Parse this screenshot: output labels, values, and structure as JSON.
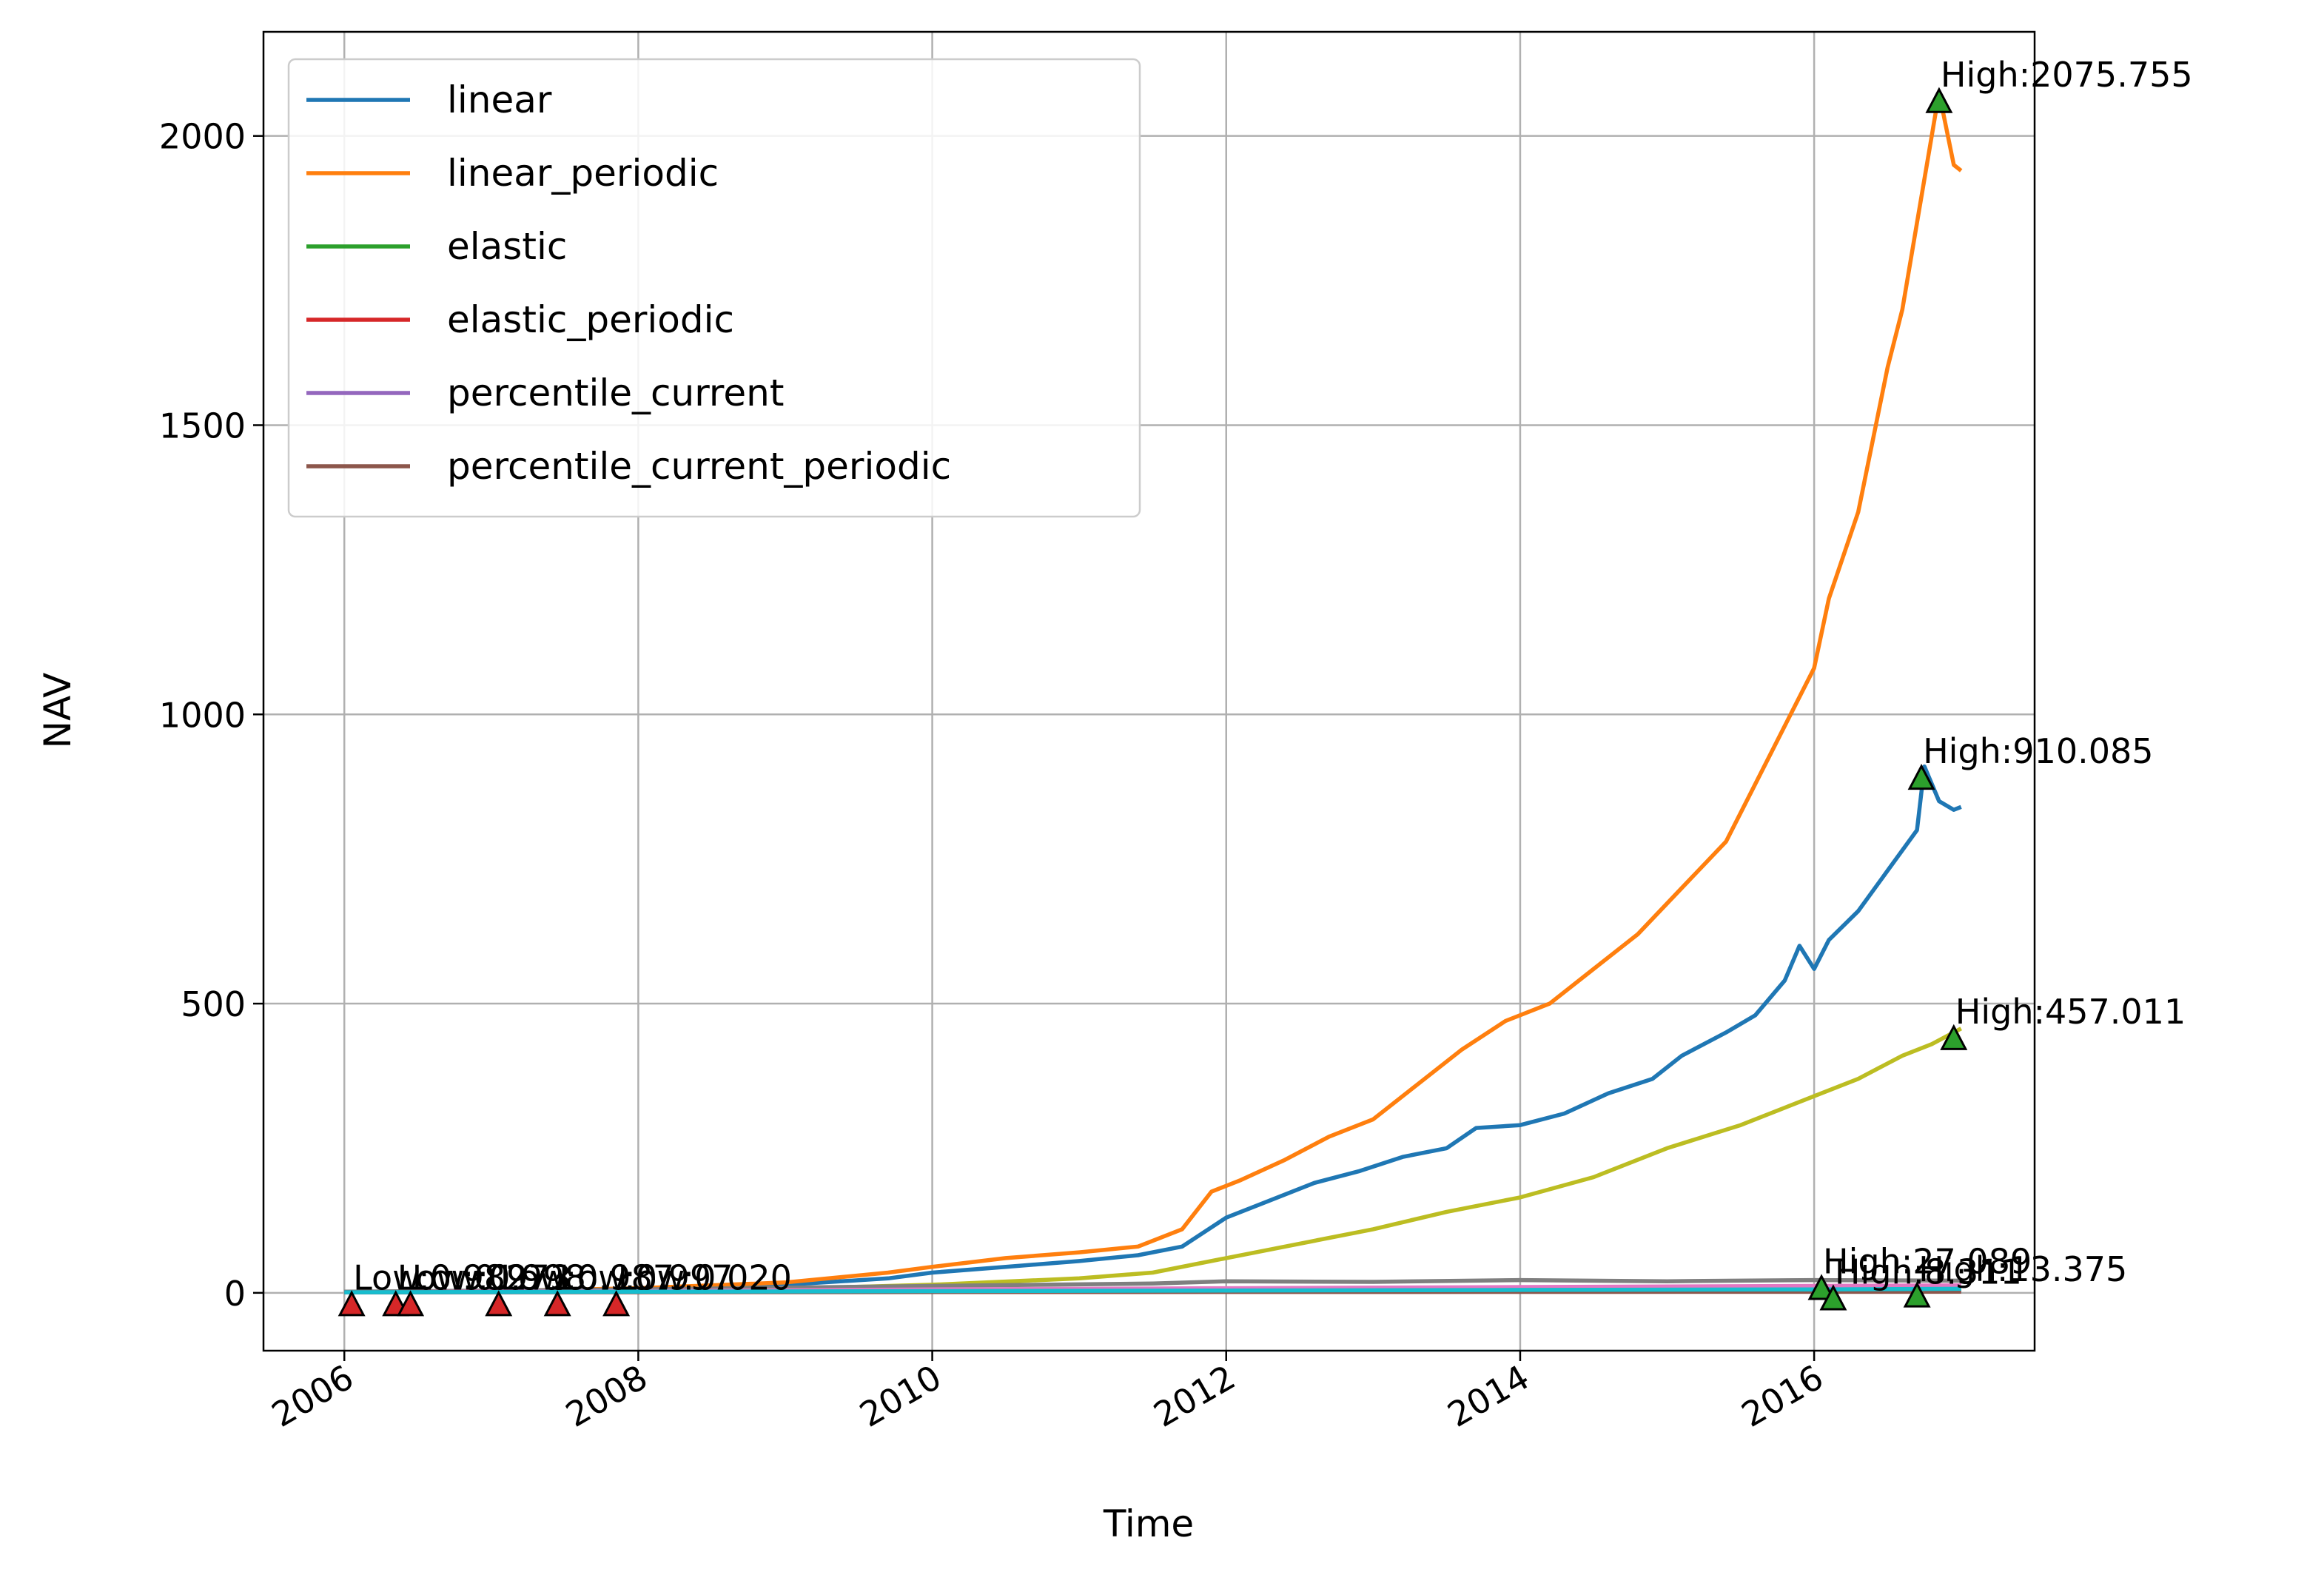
{
  "chart_data": {
    "type": "line",
    "xlabel": "Time",
    "ylabel": "NAV",
    "xlim": [
      2005.45,
      2017.5
    ],
    "ylim": [
      -100,
      2180
    ],
    "grid": true,
    "legend_position": "top-left",
    "x_ticks": [
      2006,
      2008,
      2010,
      2012,
      2014,
      2016
    ],
    "y_ticks": [
      0,
      500,
      1000,
      1500,
      2000
    ],
    "series": [
      {
        "name": "linear",
        "color": "#1f77b4",
        "points": [
          [
            2006.0,
            1
          ],
          [
            2007.0,
            3
          ],
          [
            2008.0,
            7
          ],
          [
            2009.0,
            14
          ],
          [
            2009.7,
            25
          ],
          [
            2010.0,
            35
          ],
          [
            2010.5,
            45
          ],
          [
            2011.0,
            55
          ],
          [
            2011.4,
            65
          ],
          [
            2011.7,
            80
          ],
          [
            2012.0,
            130
          ],
          [
            2012.3,
            160
          ],
          [
            2012.6,
            190
          ],
          [
            2012.9,
            210
          ],
          [
            2013.2,
            235
          ],
          [
            2013.5,
            250
          ],
          [
            2013.7,
            285
          ],
          [
            2014.0,
            290
          ],
          [
            2014.3,
            310
          ],
          [
            2014.6,
            345
          ],
          [
            2014.9,
            370
          ],
          [
            2015.1,
            410
          ],
          [
            2015.4,
            450
          ],
          [
            2015.6,
            480
          ],
          [
            2015.8,
            540
          ],
          [
            2015.9,
            600
          ],
          [
            2016.0,
            560
          ],
          [
            2016.1,
            610
          ],
          [
            2016.3,
            660
          ],
          [
            2016.5,
            730
          ],
          [
            2016.7,
            800
          ],
          [
            2016.75,
            910
          ],
          [
            2016.85,
            850
          ],
          [
            2016.95,
            835
          ],
          [
            2017.0,
            840
          ]
        ]
      },
      {
        "name": "linear_periodic",
        "color": "#ff7f0e",
        "points": [
          [
            2006.0,
            1
          ],
          [
            2007.0,
            3
          ],
          [
            2008.0,
            8
          ],
          [
            2009.0,
            18
          ],
          [
            2009.7,
            35
          ],
          [
            2010.0,
            45
          ],
          [
            2010.5,
            60
          ],
          [
            2011.0,
            70
          ],
          [
            2011.4,
            80
          ],
          [
            2011.7,
            110
          ],
          [
            2011.9,
            175
          ],
          [
            2012.1,
            195
          ],
          [
            2012.4,
            230
          ],
          [
            2012.7,
            270
          ],
          [
            2013.0,
            300
          ],
          [
            2013.3,
            360
          ],
          [
            2013.6,
            420
          ],
          [
            2013.9,
            470
          ],
          [
            2014.2,
            500
          ],
          [
            2014.5,
            560
          ],
          [
            2014.8,
            620
          ],
          [
            2015.1,
            700
          ],
          [
            2015.4,
            780
          ],
          [
            2015.6,
            880
          ],
          [
            2015.8,
            980
          ],
          [
            2016.0,
            1080
          ],
          [
            2016.1,
            1200
          ],
          [
            2016.3,
            1350
          ],
          [
            2016.5,
            1600
          ],
          [
            2016.6,
            1700
          ],
          [
            2016.7,
            1850
          ],
          [
            2016.8,
            2000
          ],
          [
            2016.85,
            2075
          ],
          [
            2016.95,
            1950
          ],
          [
            2017.0,
            1940
          ]
        ]
      },
      {
        "name": "",
        "color": "#bcbd22",
        "points": [
          [
            2006.0,
            1
          ],
          [
            2007.0,
            2
          ],
          [
            2008.0,
            4
          ],
          [
            2009.0,
            7
          ],
          [
            2010.0,
            14
          ],
          [
            2011.0,
            25
          ],
          [
            2011.5,
            35
          ],
          [
            2012.0,
            60
          ],
          [
            2012.5,
            85
          ],
          [
            2013.0,
            110
          ],
          [
            2013.5,
            140
          ],
          [
            2014.0,
            165
          ],
          [
            2014.5,
            200
          ],
          [
            2015.0,
            250
          ],
          [
            2015.5,
            290
          ],
          [
            2016.0,
            340
          ],
          [
            2016.3,
            370
          ],
          [
            2016.6,
            410
          ],
          [
            2016.8,
            430
          ],
          [
            2017.0,
            457
          ]
        ]
      },
      {
        "name": "",
        "color": "#7f7f7f",
        "points": [
          [
            2006.0,
            2
          ],
          [
            2008.0,
            6
          ],
          [
            2010.0,
            12
          ],
          [
            2011.5,
            16
          ],
          [
            2012.0,
            20
          ],
          [
            2013.0,
            19
          ],
          [
            2014.0,
            22
          ],
          [
            2015.0,
            20
          ],
          [
            2016.0,
            22
          ],
          [
            2017.0,
            21
          ]
        ]
      },
      {
        "name": "",
        "color": "#e377c2",
        "points": [
          [
            2006.0,
            1
          ],
          [
            2008.0,
            3
          ],
          [
            2010.0,
            6
          ],
          [
            2012.0,
            8
          ],
          [
            2014.0,
            10
          ],
          [
            2016.0,
            12
          ],
          [
            2017.0,
            13
          ]
        ]
      },
      {
        "name": "elastic",
        "color": "#2ca02c",
        "points": [
          [
            2006.0,
            1
          ],
          [
            2017.0,
            5
          ]
        ]
      },
      {
        "name": "elastic_periodic",
        "color": "#d62728",
        "points": [
          [
            2006.0,
            1
          ],
          [
            2017.0,
            4
          ]
        ]
      },
      {
        "name": "percentile_current",
        "color": "#9467bd",
        "points": [
          [
            2006.0,
            1
          ],
          [
            2017.0,
            3
          ]
        ]
      },
      {
        "name": "percentile_current_periodic",
        "color": "#8c564b",
        "points": [
          [
            2006.0,
            1
          ],
          [
            2017.0,
            2
          ]
        ]
      },
      {
        "name": "",
        "color": "#17becf",
        "points": [
          [
            2006.0,
            1
          ],
          [
            2008.0,
            2
          ],
          [
            2010.0,
            3
          ],
          [
            2012.0,
            4
          ],
          [
            2014.0,
            5
          ],
          [
            2016.0,
            6
          ],
          [
            2017.0,
            7
          ]
        ]
      }
    ],
    "legend": [
      "linear",
      "linear_periodic",
      "elastic",
      "elastic_periodic",
      "percentile_current",
      "percentile_current_periodic"
    ],
    "high_markers": [
      {
        "x": 2016.85,
        "y": 2060,
        "label": "High:2075.755"
      },
      {
        "x": 2016.73,
        "y": 890,
        "label": "High:910.085"
      },
      {
        "x": 2016.95,
        "y": 440,
        "label": "High:457.011"
      },
      {
        "x": 2016.05,
        "y": 8,
        "label": "High:27.089"
      },
      {
        "x": 2016.13,
        "y": -10,
        "label": "High:8.311"
      },
      {
        "x": 2016.7,
        "y": -5,
        "label": "High:13.375"
      }
    ],
    "low_markers": [
      {
        "x": 2006.05,
        "y": -20,
        "label": "Low:0.982"
      },
      {
        "x": 2006.35,
        "y": -20,
        "label": "Low:0.973"
      },
      {
        "x": 2006.45,
        "y": -20,
        "label": "Low:0.998"
      },
      {
        "x": 2007.05,
        "y": -20,
        "label": "Low:0.987"
      },
      {
        "x": 2007.45,
        "y": -20,
        "label": "Low:0.997"
      },
      {
        "x": 2007.85,
        "y": -20,
        "label": "Low:0.020"
      }
    ],
    "marker_colors": {
      "high": "#2ca02c",
      "low": "#d62728"
    }
  }
}
